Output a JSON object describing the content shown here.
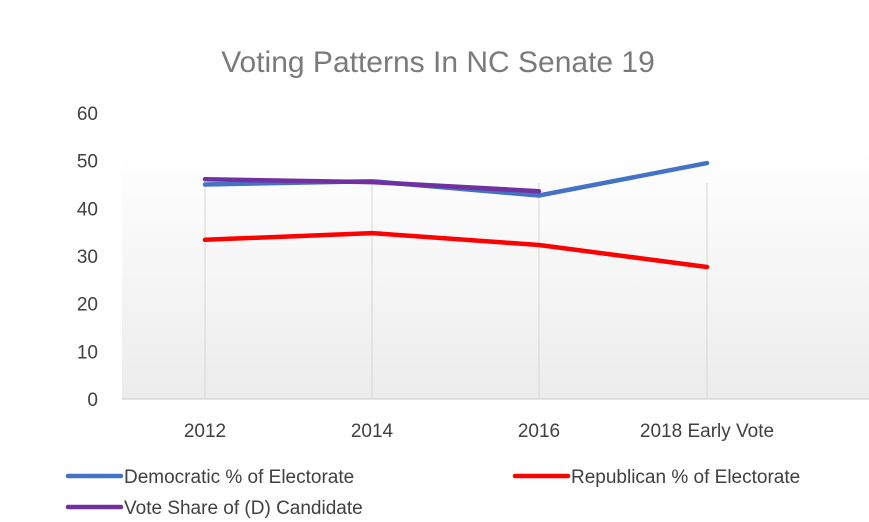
{
  "chart_data": {
    "type": "line",
    "title": "Voting Patterns In NC Senate 19",
    "xlabel": "",
    "ylabel": "",
    "categories": [
      "2012",
      "2014",
      "2016",
      "2018 Early Vote"
    ],
    "ylim": [
      0,
      60
    ],
    "yticks": [
      "0",
      "10",
      "20",
      "30",
      "40",
      "50",
      "60"
    ],
    "series": [
      {
        "name": "Democratic % of Electorate",
        "color": "#4472c4",
        "values": [
          45,
          45.7,
          42.7,
          49.5
        ]
      },
      {
        "name": "Republican % of Electorate",
        "color": "#ff0000",
        "values": [
          33.4,
          34.8,
          32.3,
          27.7
        ]
      },
      {
        "name": "Vote Share of (D) Candidate",
        "color": "#7030a0",
        "values": [
          46.1,
          45.5,
          43.6,
          null
        ]
      }
    ],
    "legend": "bottom",
    "grid": "vertical"
  }
}
